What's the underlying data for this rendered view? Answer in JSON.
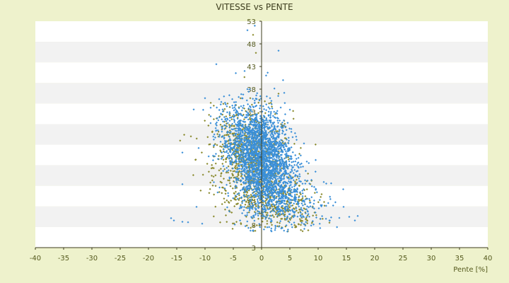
{
  "chart_data": {
    "type": "scatter",
    "title": "VITESSE vs PENTE",
    "xlabel": "Pente [%]",
    "ylabel": "",
    "xlim": [
      -40,
      40
    ],
    "ylim": [
      3,
      53
    ],
    "x_ticks": [
      "-40",
      "-35",
      "-30",
      "-25",
      "-20",
      "-15",
      "-10",
      "-5",
      "0",
      "5",
      "10",
      "15",
      "20",
      "25",
      "30",
      "35",
      "40"
    ],
    "y_ticks": [
      "3",
      "8",
      "13",
      "18",
      "23",
      "28",
      "33",
      "38",
      "43",
      "48",
      "53"
    ],
    "grid": "horizontal bands",
    "legend": "none",
    "series": [
      {
        "color": "#3a8fd8",
        "marker": "diamond",
        "cloud": [
          {
            "x": 0.2,
            "y": 23,
            "sx": 2.4,
            "sy": 5.2,
            "n": 1600
          },
          {
            "x": 2.5,
            "y": 15,
            "sx": 3.0,
            "sy": 3.5,
            "n": 500
          },
          {
            "x": -2.5,
            "y": 27,
            "sx": 2.2,
            "sy": 4.0,
            "n": 400
          },
          {
            "x": -5.5,
            "y": 28,
            "sx": 2.2,
            "sy": 4.5,
            "n": 120
          },
          {
            "x": 7,
            "y": 12,
            "sx": 3.0,
            "sy": 2.8,
            "n": 120
          }
        ],
        "points": [
          {
            "x": -2.5,
            "y": 51
          },
          {
            "x": -1.2,
            "y": 52
          },
          {
            "x": 3,
            "y": 46.5
          },
          {
            "x": -8,
            "y": 43.5
          },
          {
            "x": -3,
            "y": 42
          },
          {
            "x": 0.8,
            "y": 41
          },
          {
            "x": 3.8,
            "y": 40
          },
          {
            "x": -2.5,
            "y": 38
          },
          {
            "x": -10,
            "y": 36
          },
          {
            "x": -12,
            "y": 33.5
          },
          {
            "x": 1.5,
            "y": 36
          },
          {
            "x": -9,
            "y": 32
          },
          {
            "x": -14,
            "y": 24
          },
          {
            "x": -14,
            "y": 17
          },
          {
            "x": 11,
            "y": 17.5
          },
          {
            "x": -11.5,
            "y": 12
          },
          {
            "x": -16,
            "y": 9.5
          },
          {
            "x": -15.5,
            "y": 9
          },
          {
            "x": -14,
            "y": 8.7
          },
          {
            "x": -13,
            "y": 8.6
          },
          {
            "x": -10.5,
            "y": 8.3
          },
          {
            "x": 15.5,
            "y": 9.8
          },
          {
            "x": 16.5,
            "y": 9
          },
          {
            "x": 17,
            "y": 10
          },
          {
            "x": 14.5,
            "y": 12
          },
          {
            "x": 12,
            "y": 9
          },
          {
            "x": -6.5,
            "y": 26
          },
          {
            "x": 8,
            "y": 22
          },
          {
            "x": 7.5,
            "y": 26
          },
          {
            "x": 1,
            "y": 7.5
          },
          {
            "x": -1.5,
            "y": 6.8
          }
        ]
      },
      {
        "color": "#8a8a2e",
        "marker": "diamond",
        "cloud": [
          {
            "x": -1.5,
            "y": 21,
            "sx": 3.5,
            "sy": 6.0,
            "n": 700
          },
          {
            "x": 3.5,
            "y": 12,
            "sx": 3.2,
            "sy": 2.8,
            "n": 260
          },
          {
            "x": -5,
            "y": 26,
            "sx": 2.5,
            "sy": 4.0,
            "n": 160
          }
        ],
        "points": [
          {
            "x": -1.5,
            "y": 50
          },
          {
            "x": -1,
            "y": 46
          },
          {
            "x": 7,
            "y": 9
          },
          {
            "x": 9,
            "y": 8.7
          },
          {
            "x": 12,
            "y": 8.5
          },
          {
            "x": -2,
            "y": 36
          },
          {
            "x": 3,
            "y": 37
          },
          {
            "x": -4,
            "y": 34
          },
          {
            "x": 4,
            "y": 31
          }
        ]
      }
    ]
  }
}
